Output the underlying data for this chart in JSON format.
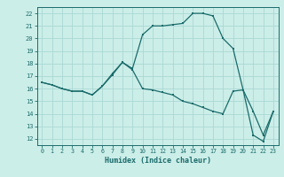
{
  "title": "",
  "xlabel": "Humidex (Indice chaleur)",
  "bg_color": "#cceee8",
  "line_color": "#1a6b6b",
  "grid_color": "#aad8d4",
  "xlim": [
    -0.5,
    23.5
  ],
  "ylim": [
    11.5,
    22.5
  ],
  "xticks": [
    0,
    1,
    2,
    3,
    4,
    5,
    6,
    7,
    8,
    9,
    10,
    11,
    12,
    13,
    14,
    15,
    16,
    17,
    18,
    19,
    20,
    21,
    22,
    23
  ],
  "yticks": [
    12,
    13,
    14,
    15,
    16,
    17,
    18,
    19,
    20,
    21,
    22
  ],
  "line1_x": [
    0,
    1,
    2,
    3,
    4,
    5,
    6,
    7,
    8,
    9,
    10,
    11,
    12,
    13,
    14,
    15,
    16,
    17,
    18,
    19,
    20,
    21,
    22,
    23
  ],
  "line1_y": [
    16.5,
    16.3,
    16.0,
    15.8,
    15.8,
    15.5,
    16.2,
    17.1,
    18.1,
    17.5,
    16.0,
    15.9,
    15.7,
    15.5,
    15.0,
    14.8,
    14.5,
    14.2,
    14.0,
    15.8,
    15.9,
    12.3,
    11.8,
    14.2
  ],
  "line2_x": [
    0,
    1,
    2,
    3,
    4,
    5,
    6,
    7,
    8,
    9,
    10,
    11,
    12,
    13,
    14,
    15,
    16,
    17,
    18,
    19,
    20,
    21,
    22,
    23
  ],
  "line2_y": [
    16.5,
    16.3,
    16.0,
    15.8,
    15.8,
    15.5,
    16.2,
    17.2,
    18.1,
    17.6,
    20.3,
    21.0,
    21.0,
    21.1,
    21.2,
    22.0,
    22.0,
    21.8,
    20.0,
    19.2,
    15.9,
    14.2,
    12.3,
    14.2
  ]
}
